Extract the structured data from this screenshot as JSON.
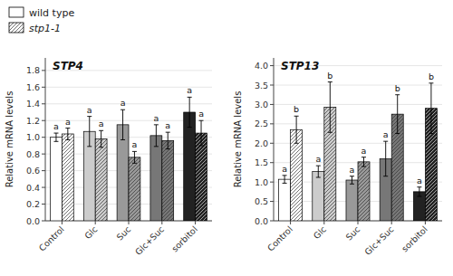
{
  "chart_data": [
    {
      "type": "bar",
      "title": "STP4",
      "y_label": "Relative mRNA levels",
      "categories": [
        "Control",
        "Glc",
        "Suc",
        "Glc+Suc",
        "sorbitol"
      ],
      "ylim": [
        0,
        1.95
      ],
      "yticks": [
        {
          "value": 0,
          "label": "0.0"
        },
        0.2,
        0.4,
        0.6,
        0.8,
        {
          "value": 1.0,
          "label": "1.0"
        },
        1.2,
        1.4,
        1.6,
        1.8
      ],
      "legend": "upper left",
      "series": [
        {
          "name": "wild type",
          "colors": [
            "white",
            "#cccccc",
            "#999999",
            "#777777",
            "#222222"
          ],
          "values": [
            1.0,
            1.07,
            1.15,
            1.02,
            1.3
          ],
          "errors": [
            0.05,
            0.18,
            0.18,
            0.13,
            0.18
          ],
          "annotations": [
            "a",
            "a",
            "a",
            "a",
            "a"
          ]
        },
        {
          "name": "stp1-1",
          "colors": [
            "white",
            "#cccccc",
            "#999999",
            "#777777",
            "#222222"
          ],
          "values": [
            1.04,
            0.98,
            0.76,
            0.96,
            1.05
          ],
          "errors": [
            0.07,
            0.1,
            0.07,
            0.1,
            0.15
          ],
          "annotations": [
            "a",
            "a",
            "a",
            "a",
            "a"
          ]
        }
      ]
    },
    {
      "type": "bar",
      "title": "STP13",
      "y_label": "Relative mRNA levels",
      "categories": [
        "Control",
        "Glc",
        "Suc",
        "Glc+Suc",
        "sorbitol"
      ],
      "ylim": [
        0,
        4.2
      ],
      "yticks": [
        {
          "value": 0,
          "label": "0.0"
        },
        0.5,
        {
          "value": 1.0,
          "label": "1.0"
        },
        1.5,
        {
          "value": 2.0,
          "label": "2.0"
        },
        2.5,
        {
          "value": 3.0,
          "label": "3.0"
        },
        3.5,
        {
          "value": 4.0,
          "label": "4.0"
        }
      ],
      "series": [
        {
          "colors": [
            "white",
            "#cccccc",
            "#999999",
            "#777777",
            "#222222"
          ],
          "values": [
            1.07,
            1.27,
            1.05,
            1.6,
            0.75
          ],
          "errors": [
            0.1,
            0.15,
            0.1,
            0.45,
            0.12
          ],
          "annotations": [
            "a",
            "a",
            "a",
            "a",
            "a"
          ]
        },
        {
          "colors": [
            "white",
            "#cccccc",
            "#999999",
            "#777777",
            "#222222"
          ],
          "values": [
            2.35,
            2.93,
            1.52,
            2.75,
            2.9
          ],
          "errors": [
            0.35,
            0.65,
            0.12,
            0.5,
            0.65
          ],
          "annotations": [
            "b",
            "b",
            "a",
            "b",
            "b"
          ]
        }
      ]
    }
  ]
}
